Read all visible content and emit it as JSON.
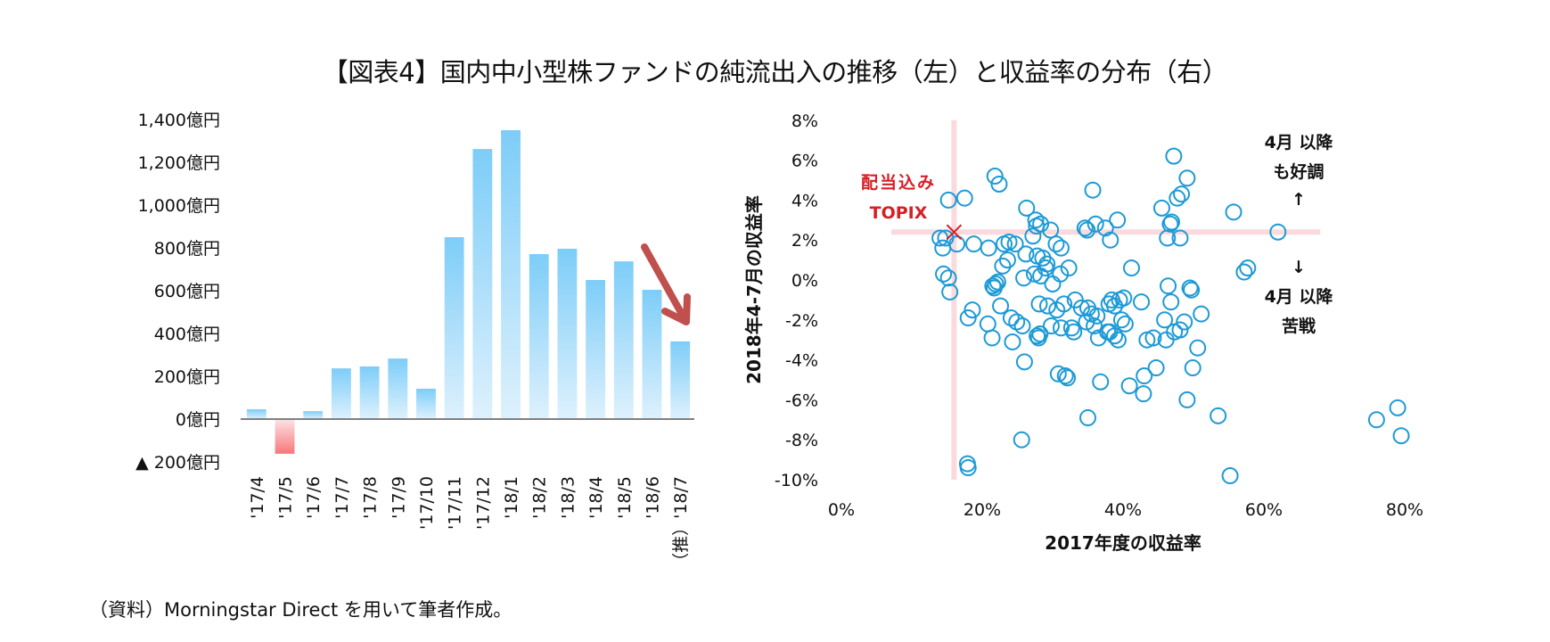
{
  "title": "【図表4】国内中小型株ファンドの純流出入の推移（左）と収益率の分布（右）",
  "note": "（資料）Morningstar Direct を用いて筆者作成。",
  "colors": {
    "bar_positive_top": "#7dcdf8",
    "bar_positive_bottom": "#def1fd",
    "bar_negative_top": "#fde3e4",
    "bar_negative_bottom": "#f7777b",
    "scatter_marker": "#1d9ad6",
    "reference_line": "#fadadd",
    "topix_marker": "#d61f26",
    "trend_arrow": "#c0504d",
    "zero_line": "#808080"
  },
  "chart_data": [
    {
      "type": "bar",
      "title": "純流出入の推移（左）",
      "categories": [
        "'17/4",
        "'17/5",
        "'17/6",
        "'17/7",
        "'17/8",
        "'17/9",
        "'17/10",
        "'17/11",
        "'17/12",
        "'18/1",
        "'18/2",
        "'18/3",
        "'18/4",
        "'18/5",
        "'18/6",
        "（推）'18/7"
      ],
      "values": [
        46,
        -162,
        37,
        237,
        246,
        283,
        142,
        850,
        1262,
        1350,
        771,
        796,
        650,
        737,
        604,
        363
      ],
      "ylim": [
        -200,
        1400
      ],
      "yticks": [
        -200,
        0,
        200,
        400,
        600,
        800,
        1000,
        1200,
        1400
      ],
      "ytick_labels": [
        "▲ 200億円",
        "0億円",
        "200億円",
        "400億円",
        "600億円",
        "800億円",
        "1,000億円",
        "1,200億円",
        "1,400億円"
      ],
      "annotation": "trend-arrow-down",
      "grid": false
    },
    {
      "type": "scatter",
      "title": "収益率の分布（右）",
      "xlabel": "2017年度の収益率",
      "ylabel": "2018年4-7月の収益率",
      "xlim": [
        0,
        80
      ],
      "ylim": [
        -10,
        8
      ],
      "xticks": [
        0,
        20,
        40,
        60,
        80
      ],
      "xtick_labels": [
        "0%",
        "20%",
        "40%",
        "60%",
        "80%"
      ],
      "yticks": [
        8,
        6,
        4,
        2,
        0,
        -2,
        -4,
        -6,
        -8,
        -10
      ],
      "ytick_labels": [
        "8%",
        "6%",
        "4%",
        "2%",
        "0%",
        "-2%",
        "-4%",
        "-6%",
        "-8%",
        "-10%"
      ],
      "reference": {
        "label_line1": "配当込み",
        "label_line2": "TOPIX",
        "x": 16.0,
        "y": 2.4
      },
      "annotations": {
        "upper": [
          "4月 以降",
          "も好調",
          "↑"
        ],
        "lower": [
          "↓",
          "4月 以降",
          "苦戦"
        ]
      },
      "points": [
        [
          14.0,
          2.1
        ],
        [
          14.8,
          2.1
        ],
        [
          14.4,
          1.6
        ],
        [
          16.4,
          1.8
        ],
        [
          15.2,
          4.0
        ],
        [
          17.5,
          4.1
        ],
        [
          18.8,
          1.8
        ],
        [
          14.5,
          0.3
        ],
        [
          15.2,
          0.1
        ],
        [
          15.4,
          -0.6
        ],
        [
          18.0,
          -1.9
        ],
        [
          18.6,
          -1.5
        ],
        [
          17.9,
          -9.2
        ],
        [
          18.0,
          -9.4
        ],
        [
          21.8,
          5.2
        ],
        [
          22.4,
          4.8
        ],
        [
          20.9,
          1.6
        ],
        [
          23.1,
          1.8
        ],
        [
          23.8,
          1.9
        ],
        [
          24.7,
          1.8
        ],
        [
          23.6,
          1.0
        ],
        [
          22.9,
          0.7
        ],
        [
          21.5,
          -0.3
        ],
        [
          21.9,
          -0.2
        ],
        [
          21.7,
          -0.4
        ],
        [
          22.2,
          -0.1
        ],
        [
          20.8,
          -2.2
        ],
        [
          21.4,
          -2.9
        ],
        [
          22.6,
          -1.3
        ],
        [
          24.1,
          -1.9
        ],
        [
          24.9,
          -2.1
        ],
        [
          25.7,
          -2.3
        ],
        [
          24.3,
          -3.1
        ],
        [
          25.6,
          -8.0
        ],
        [
          26.0,
          -4.1
        ],
        [
          26.3,
          3.6
        ],
        [
          27.6,
          3.0
        ],
        [
          27.7,
          2.7
        ],
        [
          28.3,
          2.8
        ],
        [
          27.2,
          2.2
        ],
        [
          29.7,
          2.5
        ],
        [
          30.5,
          1.8
        ],
        [
          31.2,
          1.6
        ],
        [
          26.2,
          1.3
        ],
        [
          27.8,
          1.2
        ],
        [
          28.6,
          1.1
        ],
        [
          29.2,
          0.8
        ],
        [
          25.9,
          0.1
        ],
        [
          27.4,
          0.3
        ],
        [
          28.3,
          0.2
        ],
        [
          29.0,
          0.6
        ],
        [
          31.1,
          0.3
        ],
        [
          32.3,
          0.6
        ],
        [
          30.0,
          -0.2
        ],
        [
          28.1,
          -1.2
        ],
        [
          29.3,
          -1.3
        ],
        [
          30.6,
          -1.5
        ],
        [
          31.6,
          -1.2
        ],
        [
          27.8,
          -2.8
        ],
        [
          28.0,
          -2.9
        ],
        [
          28.2,
          -2.7
        ],
        [
          29.8,
          -2.3
        ],
        [
          31.2,
          -2.4
        ],
        [
          32.7,
          -2.4
        ],
        [
          33.0,
          -2.6
        ],
        [
          33.2,
          -1.0
        ],
        [
          34.1,
          -1.4
        ],
        [
          35.0,
          -1.4
        ],
        [
          35.5,
          -1.7
        ],
        [
          36.3,
          -1.8
        ],
        [
          34.8,
          -2.1
        ],
        [
          35.9,
          -2.3
        ],
        [
          30.8,
          -4.7
        ],
        [
          31.8,
          -4.8
        ],
        [
          32.1,
          -4.9
        ],
        [
          35.0,
          -6.9
        ],
        [
          34.6,
          2.6
        ],
        [
          34.9,
          2.5
        ],
        [
          36.1,
          2.8
        ],
        [
          37.5,
          2.6
        ],
        [
          35.7,
          4.5
        ],
        [
          38.2,
          2.0
        ],
        [
          39.2,
          3.0
        ],
        [
          37.8,
          -2.6
        ],
        [
          38.1,
          -2.6
        ],
        [
          38.8,
          -2.8
        ],
        [
          39.3,
          -3.0
        ],
        [
          38.0,
          -1.2
        ],
        [
          38.4,
          -1.0
        ],
        [
          38.8,
          -1.3
        ],
        [
          39.5,
          -1.0
        ],
        [
          40.1,
          -0.9
        ],
        [
          36.5,
          -2.9
        ],
        [
          36.8,
          -5.1
        ],
        [
          41.2,
          0.6
        ],
        [
          39.8,
          -2.0
        ],
        [
          40.3,
          -2.2
        ],
        [
          42.6,
          -1.1
        ],
        [
          40.9,
          -5.3
        ],
        [
          43.0,
          -4.8
        ],
        [
          42.9,
          -5.7
        ],
        [
          43.4,
          -3.0
        ],
        [
          44.7,
          -4.4
        ],
        [
          44.3,
          -2.9
        ],
        [
          45.9,
          -2.0
        ],
        [
          46.1,
          -3.0
        ],
        [
          47.3,
          -2.6
        ],
        [
          46.8,
          -1.1
        ],
        [
          48.1,
          -2.5
        ],
        [
          48.7,
          -2.1
        ],
        [
          46.4,
          -0.3
        ],
        [
          49.5,
          -0.4
        ],
        [
          49.7,
          -0.5
        ],
        [
          49.1,
          -6.0
        ],
        [
          49.9,
          -4.4
        ],
        [
          50.6,
          -3.4
        ],
        [
          51.1,
          -1.7
        ],
        [
          47.2,
          6.2
        ],
        [
          48.3,
          4.3
        ],
        [
          47.7,
          4.1
        ],
        [
          49.1,
          5.1
        ],
        [
          45.5,
          3.6
        ],
        [
          46.7,
          2.8
        ],
        [
          46.9,
          2.9
        ],
        [
          46.3,
          2.1
        ],
        [
          48.1,
          2.1
        ],
        [
          53.5,
          -6.8
        ],
        [
          55.2,
          -9.8
        ],
        [
          55.7,
          3.4
        ],
        [
          57.2,
          0.4
        ],
        [
          57.7,
          0.6
        ],
        [
          62.0,
          2.4
        ],
        [
          76.0,
          -7.0
        ],
        [
          79.0,
          -6.4
        ],
        [
          79.5,
          -7.8
        ]
      ]
    }
  ]
}
